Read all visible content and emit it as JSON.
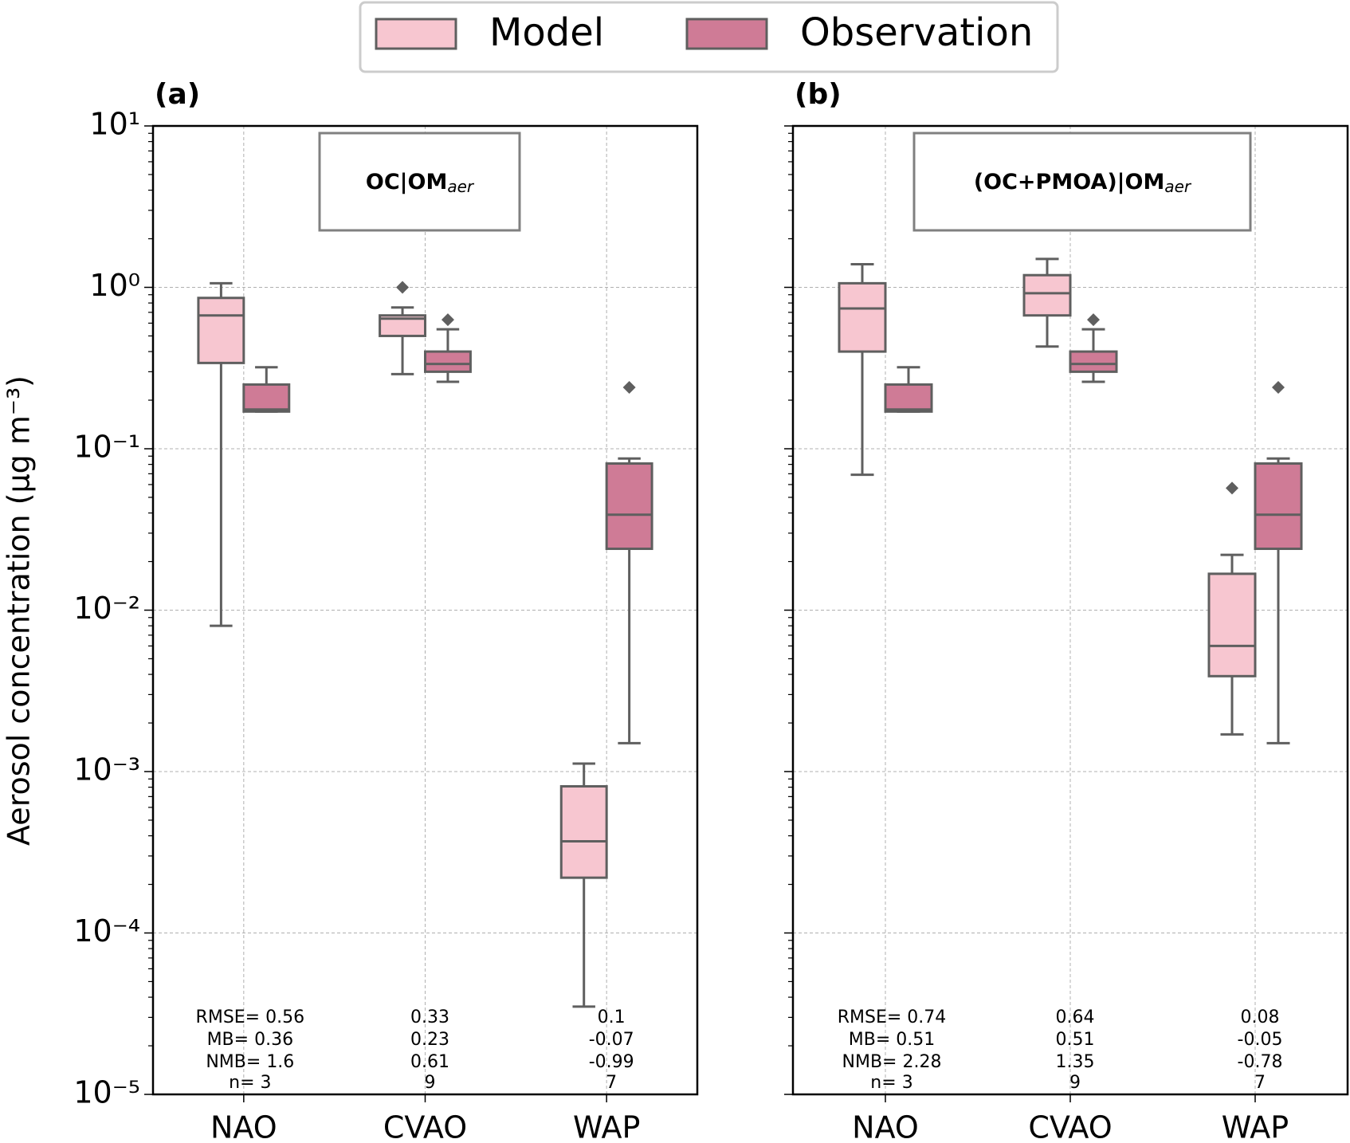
{
  "chart_data": [
    {
      "type": "box",
      "panel_label": "(a)",
      "title": "OC|OM",
      "title_sub": "aer",
      "y_label": "Aerosol concentration (µg m⁻³)",
      "categories": [
        "NAO",
        "CVAO",
        "WAP"
      ],
      "log_y": true,
      "grid": true,
      "ylim": [
        1e-05,
        10
      ],
      "yticks": [
        {
          "value": 10,
          "label": "10¹"
        },
        {
          "value": 1,
          "label": "10⁰"
        },
        {
          "value": 0.1,
          "label": "10⁻¹"
        },
        {
          "value": 0.01,
          "label": "10⁻²"
        },
        {
          "value": 0.001,
          "label": "10⁻³"
        },
        {
          "value": 0.0001,
          "label": "10⁻⁴"
        },
        {
          "value": 1e-05,
          "label": "10⁻⁵"
        }
      ],
      "series": [
        {
          "name": "Model",
          "color": "#f7c6d0",
          "values": [
            {
              "min": 0.008,
              "q1": 0.34,
              "median": 0.67,
              "q3": 0.86,
              "max": 1.06,
              "outliers": []
            },
            {
              "min": 0.29,
              "q1": 0.5,
              "median": 0.64,
              "q3": 0.67,
              "max": 0.75,
              "outliers": [
                1.0
              ]
            },
            {
              "min": 3.5e-05,
              "q1": 0.00022,
              "median": 0.00037,
              "q3": 0.00081,
              "max": 0.00112,
              "outliers": []
            }
          ]
        },
        {
          "name": "Observation",
          "color": "#cf7b96",
          "values": [
            {
              "min": 0.17,
              "q1": 0.17,
              "median": 0.175,
              "q3": 0.25,
              "max": 0.32,
              "outliers": []
            },
            {
              "min": 0.26,
              "q1": 0.3,
              "median": 0.335,
              "q3": 0.4,
              "max": 0.55,
              "outliers": [
                0.63
              ]
            },
            {
              "min": 0.0015,
              "q1": 0.024,
              "median": 0.039,
              "q3": 0.081,
              "max": 0.087,
              "outliers": [
                0.24
              ]
            }
          ]
        }
      ],
      "stats": {
        "labels": [
          "RMSE=",
          "MB=",
          "NMB=",
          "n="
        ],
        "values": [
          [
            0.56,
            0.36,
            1.6,
            3
          ],
          [
            0.33,
            0.23,
            0.61,
            9
          ],
          [
            0.1,
            -0.07,
            -0.99,
            7
          ]
        ]
      }
    },
    {
      "type": "box",
      "panel_label": "(b)",
      "title": "(OC+PMOA)|OM",
      "title_sub": "aer",
      "categories": [
        "NAO",
        "CVAO",
        "WAP"
      ],
      "log_y": true,
      "grid": true,
      "ylim": [
        1e-05,
        10
      ],
      "yticks": [
        10,
        1,
        0.1,
        0.01,
        0.001,
        0.0001,
        1e-05
      ],
      "series": [
        {
          "name": "Model",
          "color": "#f7c6d0",
          "values": [
            {
              "min": 0.069,
              "q1": 0.4,
              "median": 0.74,
              "q3": 1.06,
              "max": 1.39,
              "outliers": []
            },
            {
              "min": 0.43,
              "q1": 0.67,
              "median": 0.92,
              "q3": 1.19,
              "max": 1.5,
              "outliers": []
            },
            {
              "min": 0.0017,
              "q1": 0.0039,
              "median": 0.006,
              "q3": 0.0168,
              "max": 0.022,
              "outliers": [
                0.057
              ]
            }
          ]
        },
        {
          "name": "Observation",
          "color": "#cf7b96",
          "values": [
            {
              "min": 0.17,
              "q1": 0.17,
              "median": 0.175,
              "q3": 0.25,
              "max": 0.32,
              "outliers": []
            },
            {
              "min": 0.26,
              "q1": 0.3,
              "median": 0.335,
              "q3": 0.4,
              "max": 0.55,
              "outliers": [
                0.63
              ]
            },
            {
              "min": 0.0015,
              "q1": 0.024,
              "median": 0.039,
              "q3": 0.081,
              "max": 0.087,
              "outliers": [
                0.24
              ]
            }
          ]
        }
      ],
      "stats": {
        "labels": [
          "RMSE=",
          "MB=",
          "NMB=",
          "n="
        ],
        "values": [
          [
            0.74,
            0.51,
            2.28,
            3
          ],
          [
            0.64,
            0.51,
            1.35,
            9
          ],
          [
            0.08,
            -0.05,
            -0.78,
            7
          ]
        ]
      }
    }
  ]
}
